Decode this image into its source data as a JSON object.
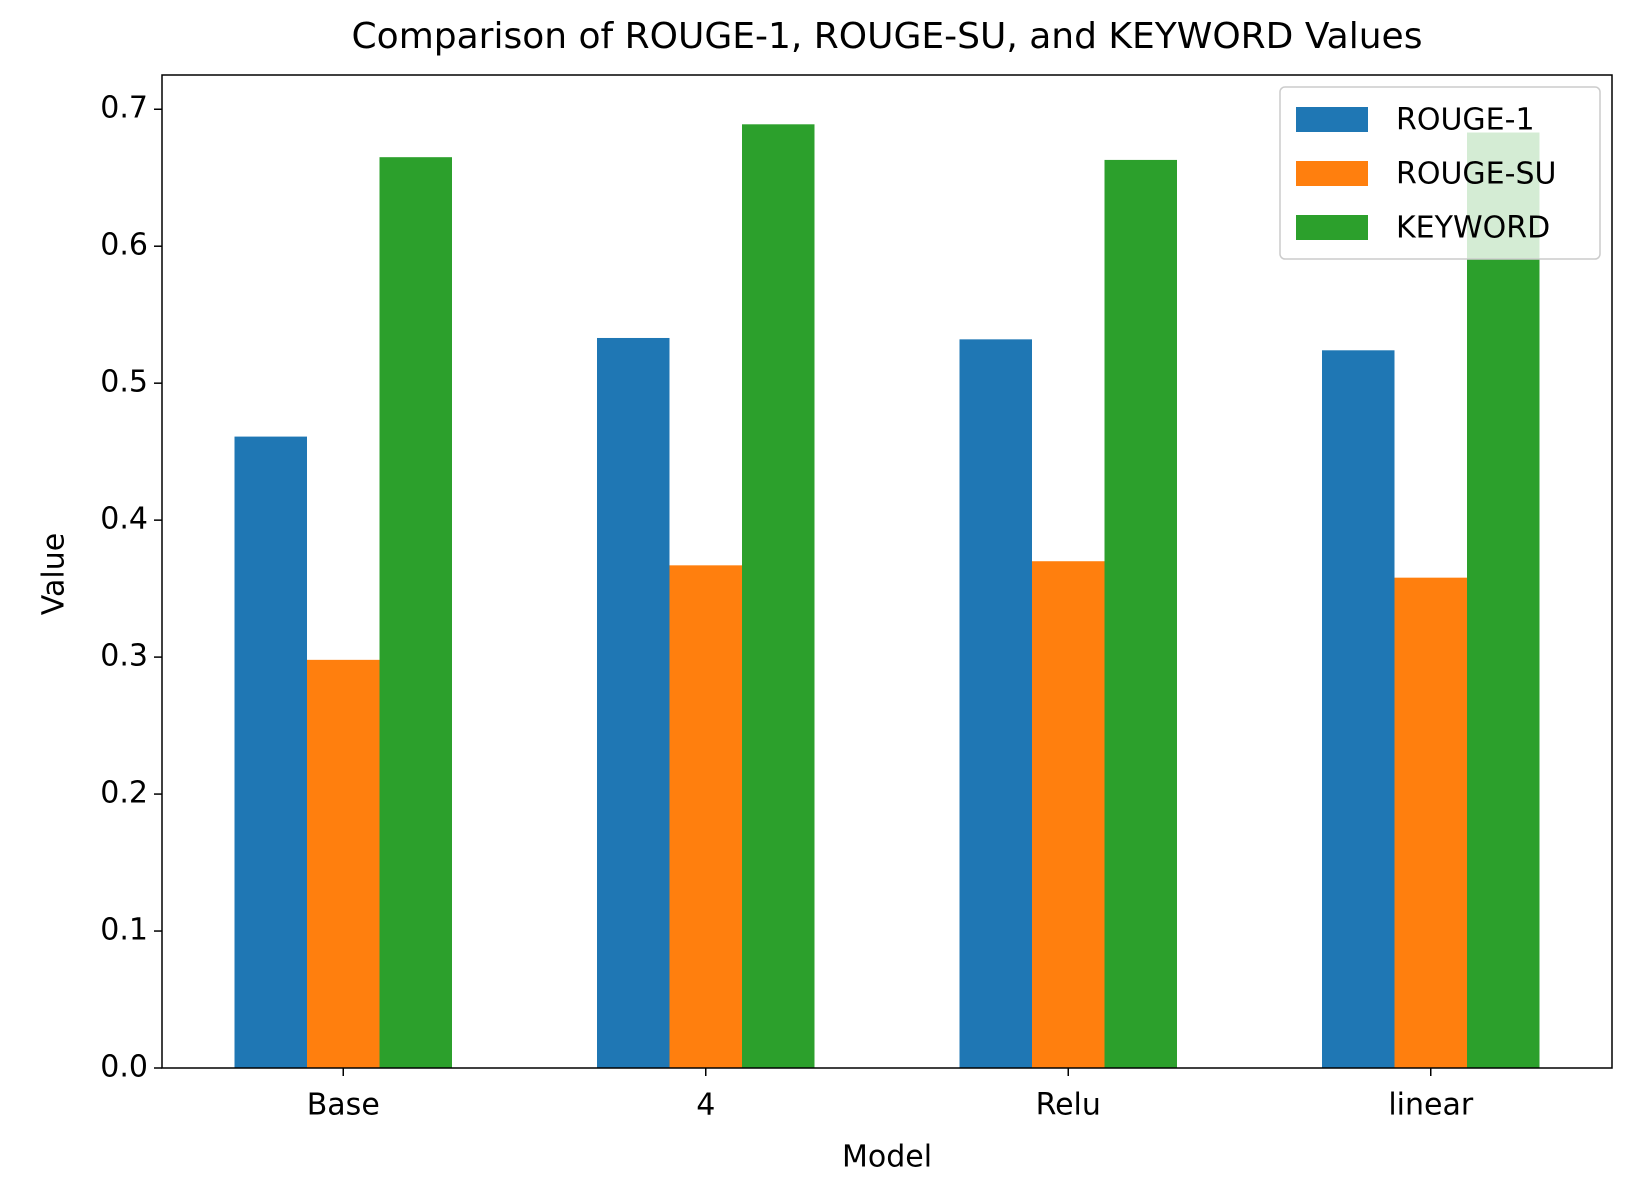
{
  "chart_data": {
    "type": "bar",
    "title": "Comparison of ROUGE-1, ROUGE-SU, and KEYWORD Values",
    "x_label": "Model",
    "y_label": "Value",
    "categories": [
      "Base",
      "4",
      "Relu",
      "linear"
    ],
    "series": [
      {
        "name": "ROUGE-1",
        "color": "#1f77b4",
        "values": [
          0.461,
          0.533,
          0.532,
          0.524
        ]
      },
      {
        "name": "ROUGE-SU",
        "color": "#ff7f0e",
        "values": [
          0.298,
          0.367,
          0.37,
          0.358
        ]
      },
      {
        "name": "KEYWORD",
        "color": "#2ca02c",
        "values": [
          0.665,
          0.689,
          0.663,
          0.683
        ]
      }
    ],
    "ylim": [
      0,
      0.725
    ],
    "yticks": [
      {
        "value": 0,
        "label": "0.0"
      },
      0.1,
      0.2,
      0.3,
      0.4,
      0.5,
      0.6,
      0.7
    ],
    "grid": false,
    "legend": "upper right"
  }
}
